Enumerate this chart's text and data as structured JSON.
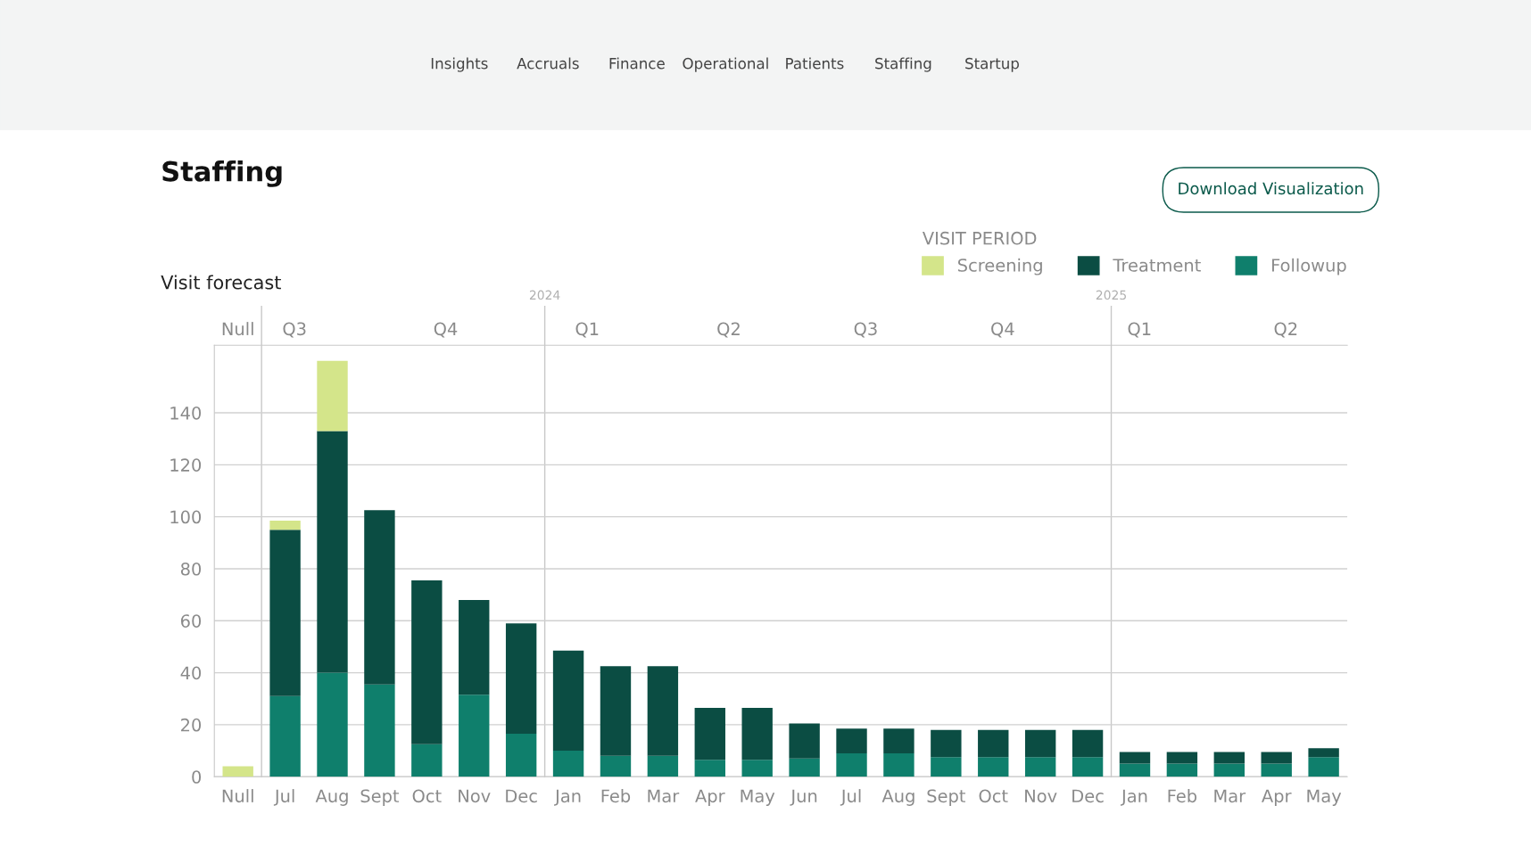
{
  "chart_data": {
    "type": "bar",
    "title": "Staffing",
    "subtitle": "Visit forecast",
    "legend_title": "VISIT PERIOD",
    "annotations": [
      "Insights",
      "Accruals",
      "Finance",
      "Operational",
      "Patients",
      "Staffing",
      "Startup",
      "Download Visualization",
      "Null",
      "Q3",
      "Q4",
      "Q1",
      "Q2",
      "Q3",
      "Q4",
      "Q1",
      "Q2",
      "2024",
      "2025"
    ],
    "categories": [
      "Null",
      "Jul",
      "Aug",
      "Sept",
      "Oct",
      "Nov",
      "Dec",
      "Jan",
      "Feb",
      "Mar",
      "Apr",
      "May",
      "Jun",
      "Jul",
      "Aug",
      "Sept",
      "Oct",
      "Nov",
      "Dec",
      "Jan",
      "Feb",
      "Mar",
      "Apr",
      "May"
    ],
    "stacked": true,
    "series": [
      {
        "name": "Followup",
        "color": "#0f7f6c",
        "values": [
          0,
          31,
          40,
          35.5,
          12.5,
          31.5,
          16.5,
          10,
          8,
          8,
          6.5,
          6.5,
          7,
          9,
          9,
          7.5,
          7.5,
          7.5,
          7.5,
          5,
          5,
          5,
          5,
          7.5
        ]
      },
      {
        "name": "Treatment",
        "color": "#0b4d43",
        "values": [
          0,
          64,
          93,
          67,
          63,
          36.5,
          42.5,
          38.5,
          34.5,
          34.5,
          20,
          20,
          13.5,
          9.5,
          9.5,
          10.5,
          10.5,
          10.5,
          10.5,
          4.5,
          4.5,
          4.5,
          4.5,
          3.5
        ]
      },
      {
        "name": "Screening",
        "color": "#d4e58a",
        "values": [
          4,
          3.5,
          27,
          0,
          0,
          0,
          0,
          0,
          0,
          0,
          0,
          0,
          0,
          0,
          0,
          0,
          0,
          0,
          0,
          0,
          0,
          0,
          0,
          0
        ]
      }
    ],
    "ylim": [
      0,
      166
    ],
    "yticks": [
      0,
      20,
      40,
      60,
      80,
      100,
      120,
      140
    ],
    "grid": "y",
    "legend": "top right"
  }
}
